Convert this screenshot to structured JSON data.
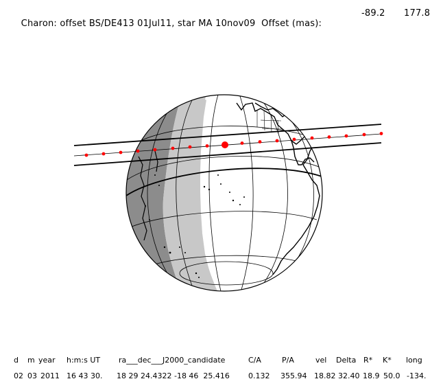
{
  "header": {
    "title": "Charon: offset BS/DE413 01Jul11, star MA 10nov09  Offset (mas):",
    "offset_x": "-89.2",
    "offset_y": "177.8"
  },
  "table": {
    "headers": [
      "d",
      "m",
      "year",
      "h:m:s UT",
      "ra___dec___J2000_candidate",
      "C/A",
      "P/A",
      "vel",
      "Delta",
      "R*",
      "K*",
      "long"
    ],
    "values": [
      "02",
      "03",
      "2011",
      "16 43 30.",
      "18 29 24.4322 -18 46  25.416",
      "0.132",
      "355.94",
      "18.82",
      "32.40",
      "18.9",
      "50.0",
      "-134."
    ]
  },
  "colors": {
    "night": "#8c8c8c",
    "twilight": "#c8c8c8",
    "day": "#ffffff",
    "path_marker": "#ff0000"
  }
}
